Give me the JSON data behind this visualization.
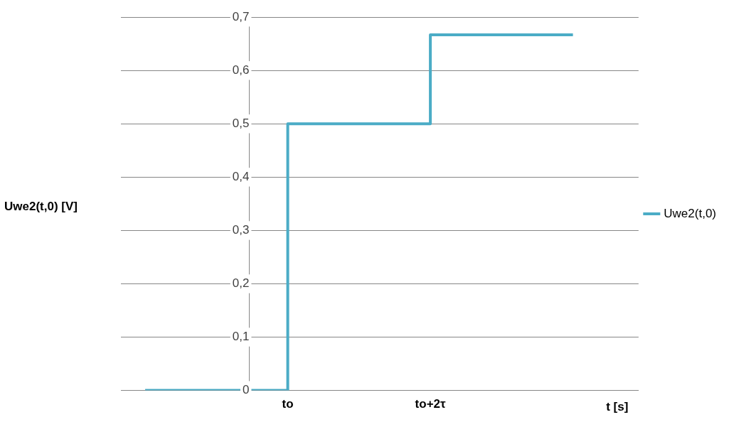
{
  "chart_data": {
    "type": "step",
    "xlabel": "t [s]",
    "ylabel": "Uwe2(t,0) [V]",
    "series": [
      {
        "name": "Uwe2(t,0)",
        "color": "#4bacc6",
        "values": [
          0,
          0.5,
          0.667,
          0.667
        ]
      }
    ],
    "categories": [
      null,
      "to",
      "to+2τ",
      null
    ],
    "ylim": [
      0,
      0.7
    ],
    "yticks": [
      {
        "value": 0,
        "label": "0"
      },
      {
        "value": 0.1,
        "label": "0,1"
      },
      {
        "value": 0.2,
        "label": "0,2"
      },
      {
        "value": 0.3,
        "label": "0,3"
      },
      {
        "value": 0.4,
        "label": "0,4"
      },
      {
        "value": 0.5,
        "label": "0,5"
      },
      {
        "value": 0.6,
        "label": "0,6"
      },
      {
        "value": 0.7,
        "label": "0,7"
      }
    ],
    "grid": "y",
    "legend": "right"
  }
}
